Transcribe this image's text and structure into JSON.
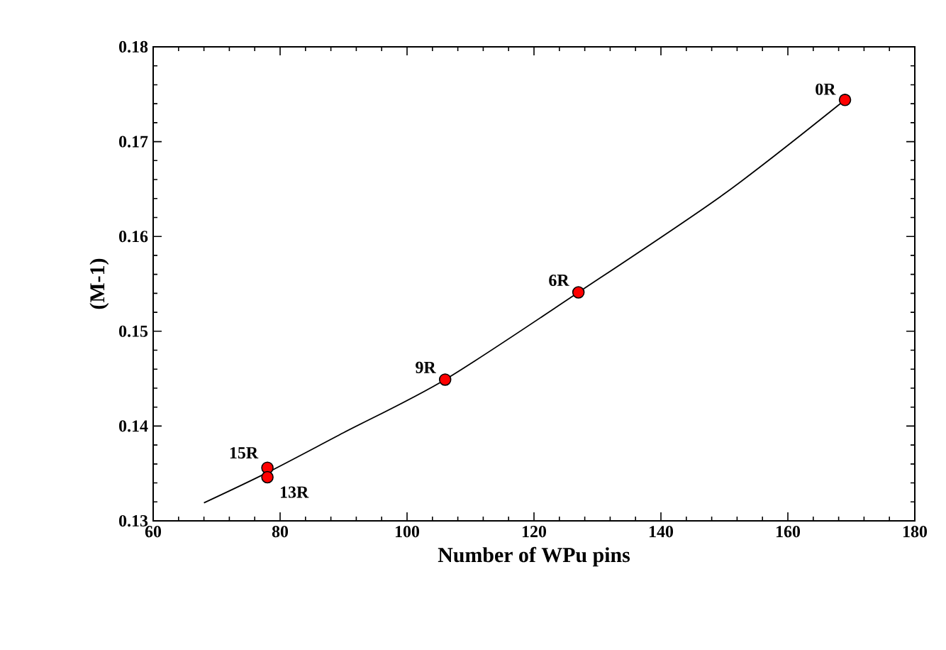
{
  "chart_data": {
    "type": "scatter",
    "xlabel": "Number of WPu pins",
    "ylabel": "(M-1)",
    "xlim": [
      60,
      180
    ],
    "xticks": [
      60,
      80,
      100,
      120,
      140,
      160,
      180
    ],
    "ylim": [
      0.13,
      0.18
    ],
    "yticks": [
      0.13,
      0.14,
      0.15,
      0.16,
      0.17,
      0.18
    ],
    "grid": false,
    "x": [
      169,
      127,
      106,
      78,
      78
    ],
    "series": [
      {
        "type": "line",
        "color": "#000000",
        "marker": "none",
        "x": [
          68,
          78,
          90,
          106,
          127,
          150,
          169
        ],
        "values": [
          0.1319,
          0.1351,
          0.1393,
          0.1449,
          0.1541,
          0.1645,
          0.1744
        ]
      },
      {
        "color": "#ff0000",
        "marker": "circle",
        "values": [
          0.1744,
          0.1541,
          0.1449,
          0.1356,
          0.1346
        ]
      }
    ],
    "annotations": [
      {
        "text": "0R",
        "x": 169,
        "y": 0.1744
      },
      {
        "text": "6R",
        "x": 127,
        "y": 0.1541
      },
      {
        "text": "9R",
        "x": 106,
        "y": 0.1449
      },
      {
        "text": "15R",
        "x": 78,
        "y": 0.1356
      },
      {
        "text": "13R",
        "x": 78,
        "y": 0.1346
      }
    ]
  }
}
